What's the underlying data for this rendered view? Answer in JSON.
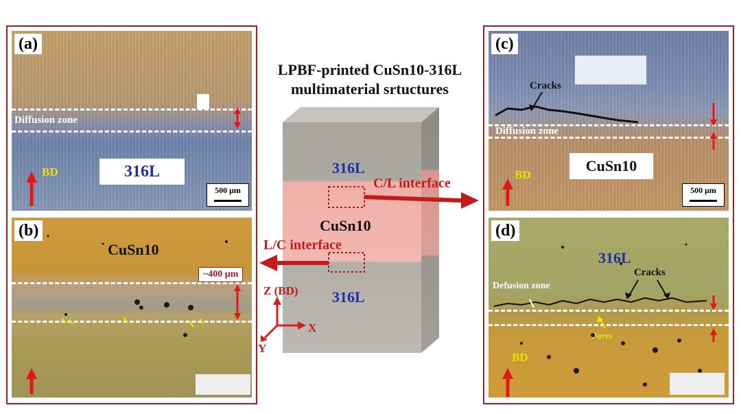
{
  "title": {
    "line1": "LPBF-printed CuSn10-316L",
    "line2": "multimaterial srtuctures"
  },
  "cube": {
    "top_label": "316L",
    "middle_label": "CuSn10",
    "bottom_label": "316L",
    "cl_interface": "C/L interface",
    "lc_interface": "L/C interface",
    "colors": {
      "steel": "#b5b2ab",
      "copper_band": "#f0b4ad",
      "arrow": "#c21b1b",
      "frame": "#a51c1c"
    }
  },
  "axes": {
    "z": "Z (BD)",
    "x": "X",
    "y": "Y"
  },
  "panels": {
    "a": {
      "label": "(a)",
      "zone": "Diffusion zone",
      "material": "316L",
      "bd": "BD",
      "scale": "500 μm"
    },
    "b": {
      "label": "(b)",
      "material": "CuSn10",
      "width": "~400 μm"
    },
    "c": {
      "label": "(c)",
      "cracks": "Cracks",
      "zone": "Diffusion zone",
      "material": "CuSn10",
      "bd": "BD",
      "scale": "500 μm"
    },
    "d": {
      "label": "(d)",
      "material": "316L",
      "cracks": "Cracks",
      "zone": "Defusion zone",
      "pores": "Pores",
      "bd": "BD"
    }
  }
}
